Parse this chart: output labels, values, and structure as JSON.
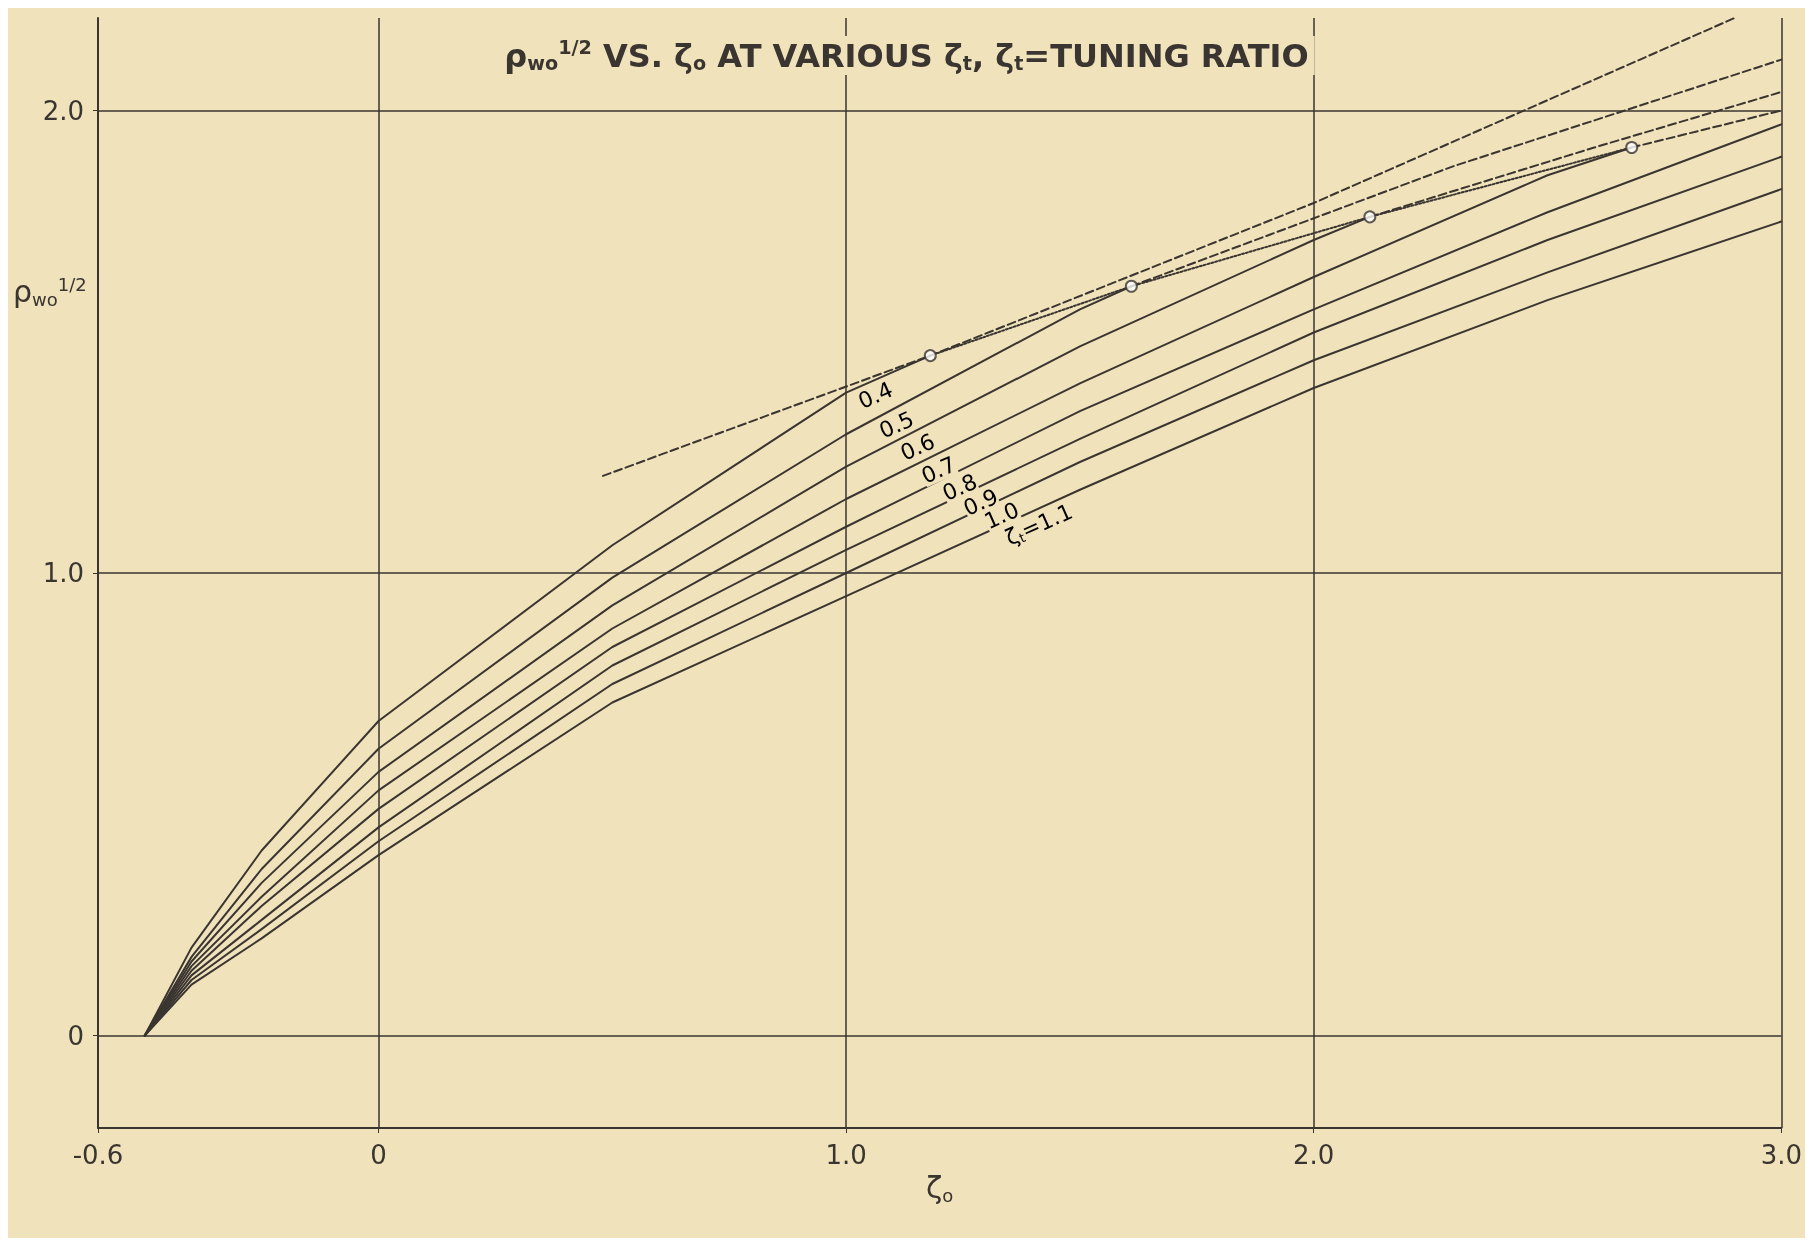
{
  "chart_data": {
    "type": "line",
    "title": "ρ$_{wo}$$^{1/2}$ VS. ζ$_{o}$ AT VARIOUS ζ$_{t}$, ζ$_{t}$=TUNING RATIO",
    "xlabel": "ζ$_{o}$",
    "ylabel": "ρ$_{wo}$$^{1/2}$",
    "xlim": [
      -0.6,
      3.0
    ],
    "xticks": [
      {
        "value": -0.6,
        "label": "-0.6"
      },
      0,
      {
        "value": 1,
        "label": "1.0"
      },
      {
        "value": 2,
        "label": "2.0"
      },
      {
        "value": 3,
        "label": "3.0"
      }
    ],
    "ylim": [
      -0.2,
      2.2
    ],
    "yticks": [
      0,
      {
        "value": 1,
        "label": "1.0"
      },
      {
        "value": 2,
        "label": "2.0"
      }
    ],
    "grid": true,
    "legend": false,
    "marker": "none",
    "line_style": "solid",
    "series": [
      {
        "name": "0.4",
        "color": "#3a3530",
        "x": [
          -0.5,
          -0.4,
          -0.25,
          0,
          0.5,
          1.0,
          1.18
        ],
        "values": [
          0,
          0.19,
          0.4,
          0.68,
          1.06,
          1.39,
          1.47
        ]
      },
      {
        "name": "0.5",
        "color": "#3a3530",
        "x": [
          -0.5,
          -0.4,
          -0.25,
          0,
          0.5,
          1.0,
          1.5,
          1.61
        ],
        "values": [
          0,
          0.17,
          0.36,
          0.62,
          0.99,
          1.3,
          1.57,
          1.62
        ]
      },
      {
        "name": "0.6",
        "color": "#3a3530",
        "x": [
          -0.5,
          -0.4,
          -0.25,
          0,
          0.5,
          1.0,
          1.5,
          2.0,
          2.12
        ],
        "values": [
          0,
          0.16,
          0.33,
          0.57,
          0.93,
          1.23,
          1.49,
          1.72,
          1.77
        ]
      },
      {
        "name": "0.7",
        "color": "#3a3530",
        "x": [
          -0.5,
          -0.4,
          -0.25,
          0,
          0.5,
          1.0,
          1.5,
          2.0,
          2.5,
          2.68
        ],
        "values": [
          0,
          0.15,
          0.3,
          0.53,
          0.88,
          1.16,
          1.41,
          1.64,
          1.86,
          1.92
        ]
      },
      {
        "name": "0.8",
        "color": "#3a3530",
        "x": [
          -0.5,
          -0.4,
          -0.25,
          0,
          0.5,
          1.0,
          1.5,
          2.0,
          2.5,
          3.0
        ],
        "values": [
          0,
          0.14,
          0.28,
          0.49,
          0.84,
          1.1,
          1.35,
          1.57,
          1.78,
          1.97
        ]
      },
      {
        "name": "0.9",
        "color": "#3a3530",
        "x": [
          -0.5,
          -0.4,
          -0.25,
          0,
          0.5,
          1.0,
          1.5,
          2.0,
          2.5,
          3.0
        ],
        "values": [
          0,
          0.13,
          0.25,
          0.45,
          0.8,
          1.05,
          1.29,
          1.52,
          1.72,
          1.9
        ]
      },
      {
        "name": "1.0",
        "color": "#3a3530",
        "x": [
          -0.5,
          -0.4,
          -0.25,
          0,
          0.5,
          1.0,
          1.5,
          2.0,
          2.5,
          3.0
        ],
        "values": [
          0,
          0.12,
          0.23,
          0.42,
          0.76,
          1.0,
          1.24,
          1.46,
          1.65,
          1.83
        ]
      },
      {
        "name": "ζ$_{t}$=1.1",
        "color": "#3a3530",
        "x": [
          -0.5,
          -0.4,
          -0.25,
          0,
          0.5,
          1.0,
          1.5,
          2.0,
          2.5,
          3.0
        ],
        "values": [
          0,
          0.11,
          0.21,
          0.39,
          0.72,
          0.95,
          1.18,
          1.4,
          1.59,
          1.76
        ]
      },
      {
        "color": "#3a3530",
        "line_style": "dashed",
        "x": [
          0.48,
          1.18,
          2.0,
          2.9
        ],
        "values": [
          1.21,
          1.47,
          1.8,
          2.2
        ]
      },
      {
        "color": "#3a3530",
        "line_style": "dashed",
        "x": [
          1.61,
          2.3,
          3.0
        ],
        "values": [
          1.62,
          1.88,
          2.11
        ]
      },
      {
        "color": "#3a3530",
        "line_style": "dashed",
        "x": [
          2.12,
          2.6,
          3.0
        ],
        "values": [
          1.77,
          1.92,
          2.04
        ]
      },
      {
        "color": "#3a3530",
        "line_style": "dashed",
        "x": [
          2.68,
          3.0
        ],
        "values": [
          1.92,
          2.0
        ]
      },
      {
        "color": "#3a3530",
        "line_style": "dotted",
        "x": [
          1.18,
          1.61,
          2.12,
          2.68
        ],
        "values": [
          1.47,
          1.62,
          1.77,
          1.92
        ]
      },
      {
        "type": "scatter",
        "color": "#3a3530",
        "marker": "circle",
        "x": [
          1.18,
          1.61,
          2.12,
          2.68
        ],
        "values": [
          1.47,
          1.62,
          1.77,
          1.92
        ]
      }
    ]
  }
}
